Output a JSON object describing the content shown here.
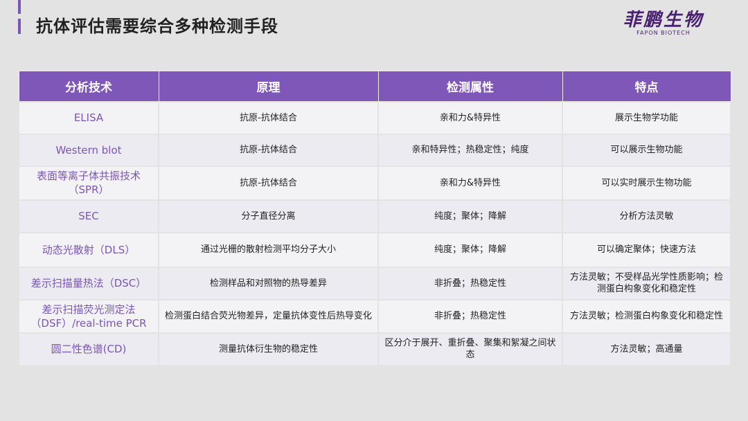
{
  "header": {
    "title": "抗体评估需要综合多种检测手段",
    "logo_cn": "菲鹏生物",
    "logo_en": "FAPON BIOTECH",
    "accent": "#7e57b9"
  },
  "table": {
    "columns": [
      "分析技术",
      "原理",
      "检测属性",
      "特点"
    ],
    "rows": [
      [
        "ELISA",
        "抗原-抗体结合",
        "亲和力&特异性",
        "展示生物学功能"
      ],
      [
        "Western blot",
        "抗原-抗体结合",
        "亲和特异性；热稳定性；纯度",
        "可以展示生物功能"
      ],
      [
        "表面等离子体共振技术（SPR）",
        "抗原-抗体结合",
        "亲和力&特异性",
        "可以实时展示生物功能"
      ],
      [
        "SEC",
        "分子直径分离",
        "纯度；聚体；降解",
        "分析方法灵敏"
      ],
      [
        "动态光散射（DLS）",
        "通过光栅的散射检测平均分子大小",
        "纯度；聚体；降解",
        "可以确定聚体；快速方法"
      ],
      [
        "差示扫描量热法（DSC）",
        "检测样品和对照物的热导差异",
        "非折叠；热稳定性",
        "方法灵敏；不受样品光学性质影响；检测蛋白构象变化和稳定性"
      ],
      [
        "差示扫描荧光测定法（DSF）/real-time PCR",
        "检测蛋白结合荧光物差异，定量抗体变性后热导变化",
        "非折叠；热稳定性",
        "方法灵敏；检测蛋白构象变化和稳定性"
      ],
      [
        "圆二性色谱(CD)",
        "测量抗体衍生物的稳定性",
        "区分介于展开、重折叠、聚集和絮凝之间状态",
        "方法灵敏；高通量"
      ]
    ]
  }
}
